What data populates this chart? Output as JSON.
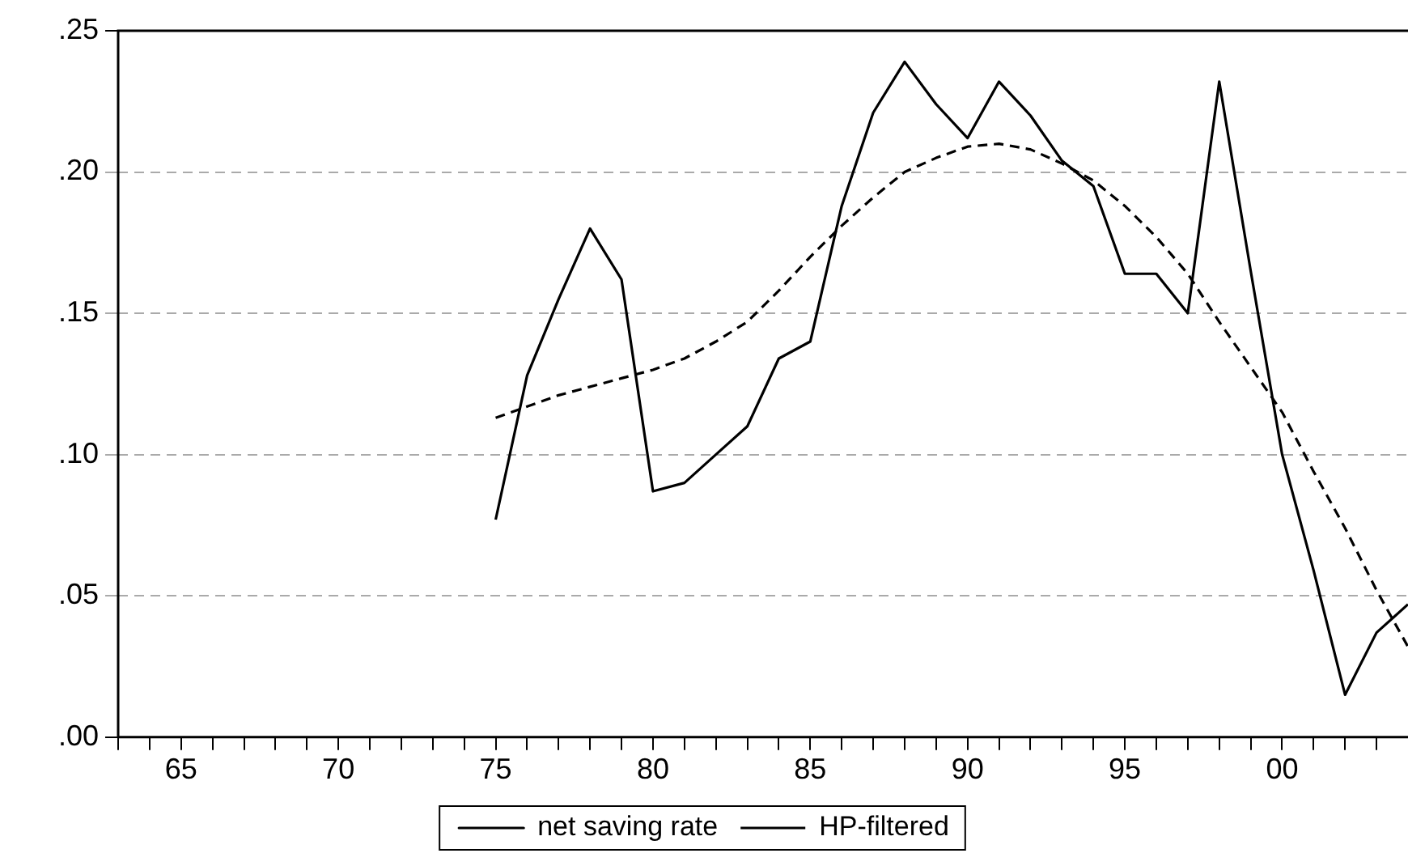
{
  "chart_data": {
    "type": "line",
    "x": [
      1975,
      1976,
      1977,
      1978,
      1979,
      1980,
      1981,
      1982,
      1983,
      1984,
      1985,
      1986,
      1987,
      1988,
      1989,
      1990,
      1991,
      1992,
      1993,
      1994,
      1995,
      1996,
      1997,
      1998,
      1999,
      2000,
      2001,
      2002,
      2003,
      2004
    ],
    "series": [
      {
        "name": "net saving rate",
        "color": "#000000",
        "line_style": "solid",
        "values": [
          0.077,
          0.128,
          0.155,
          0.18,
          0.162,
          0.087,
          0.09,
          0.1,
          0.11,
          0.134,
          0.14,
          0.188,
          0.221,
          0.239,
          0.224,
          0.212,
          0.232,
          0.22,
          0.204,
          0.195,
          0.164,
          0.164,
          0.15,
          0.232,
          0.165,
          0.1,
          0.059,
          0.015,
          0.037,
          0.047
        ]
      },
      {
        "name": "HP-filtered",
        "color": "#000000",
        "line_style": "dashed",
        "values": [
          0.113,
          0.117,
          0.121,
          0.124,
          0.127,
          0.13,
          0.134,
          0.14,
          0.147,
          0.158,
          0.17,
          0.181,
          0.191,
          0.2,
          0.205,
          0.209,
          0.21,
          0.208,
          0.203,
          0.197,
          0.188,
          0.177,
          0.164,
          0.147,
          0.131,
          0.115,
          0.094,
          0.074,
          0.052,
          0.032
        ]
      }
    ],
    "xlim": [
      1963,
      2004
    ],
    "xticks": [
      {
        "value": 1963,
        "label": null
      },
      {
        "value": 1964,
        "label": null
      },
      {
        "value": 1965,
        "label": "65"
      },
      {
        "value": 1966,
        "label": null
      },
      {
        "value": 1967,
        "label": null
      },
      {
        "value": 1968,
        "label": null
      },
      {
        "value": 1969,
        "label": null
      },
      {
        "value": 1970,
        "label": "70"
      },
      {
        "value": 1971,
        "label": null
      },
      {
        "value": 1972,
        "label": null
      },
      {
        "value": 1973,
        "label": null
      },
      {
        "value": 1974,
        "label": null
      },
      {
        "value": 1975,
        "label": "75"
      },
      {
        "value": 1976,
        "label": null
      },
      {
        "value": 1977,
        "label": null
      },
      {
        "value": 1978,
        "label": null
      },
      {
        "value": 1979,
        "label": null
      },
      {
        "value": 1980,
        "label": "80"
      },
      {
        "value": 1981,
        "label": null
      },
      {
        "value": 1982,
        "label": null
      },
      {
        "value": 1983,
        "label": null
      },
      {
        "value": 1984,
        "label": null
      },
      {
        "value": 1985,
        "label": "85"
      },
      {
        "value": 1986,
        "label": null
      },
      {
        "value": 1987,
        "label": null
      },
      {
        "value": 1988,
        "label": null
      },
      {
        "value": 1989,
        "label": null
      },
      {
        "value": 1990,
        "label": "90"
      },
      {
        "value": 1991,
        "label": null
      },
      {
        "value": 1992,
        "label": null
      },
      {
        "value": 1993,
        "label": null
      },
      {
        "value": 1994,
        "label": null
      },
      {
        "value": 1995,
        "label": "95"
      },
      {
        "value": 1996,
        "label": null
      },
      {
        "value": 1997,
        "label": null
      },
      {
        "value": 1998,
        "label": null
      },
      {
        "value": 1999,
        "label": null
      },
      {
        "value": 2000,
        "label": "00"
      },
      {
        "value": 2001,
        "label": null
      },
      {
        "value": 2002,
        "label": null
      },
      {
        "value": 2003,
        "label": null
      }
    ],
    "ylim": [
      0,
      0.25
    ],
    "yticks": [
      {
        "value": 0,
        "label": ".00"
      },
      {
        "value": 0.05,
        "label": ".05"
      },
      {
        "value": 0.1,
        "label": ".10"
      },
      {
        "value": 0.15,
        "label": ".15"
      },
      {
        "value": 0.2,
        "label": ".20"
      },
      {
        "value": 0.25,
        "label": ".25"
      }
    ],
    "grid": "y",
    "legend": "bottom",
    "marker": "none"
  }
}
